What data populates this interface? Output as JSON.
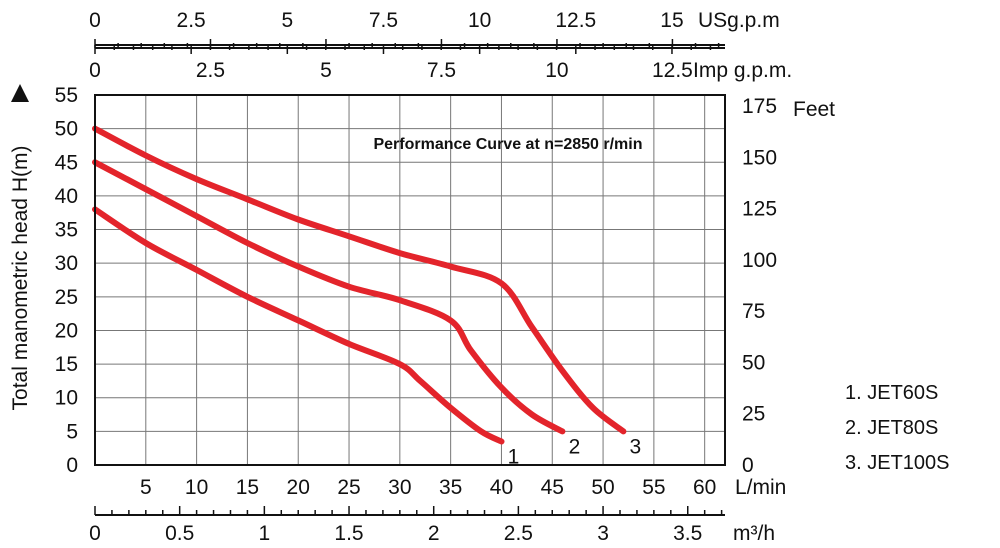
{
  "chart_data": {
    "type": "line",
    "title": "Performance Curve at n=2850 r/min",
    "ylabel": "Total manometric head H(m)",
    "y_axis": {
      "unit_label": "",
      "ylim": [
        0,
        55
      ],
      "ticks": [
        "0",
        "5",
        "10",
        "15",
        "20",
        "25",
        "30",
        "35",
        "40",
        "45",
        "50",
        "55"
      ]
    },
    "y_right_axis": {
      "unit_label": "Feet",
      "ticks": [
        "0",
        "25",
        "50",
        "75",
        "100",
        "125",
        "150",
        "175"
      ]
    },
    "x_axis": {
      "unit_label": "L/min",
      "xlim": [
        0,
        62
      ],
      "ticks": [
        "5",
        "10",
        "15",
        "20",
        "25",
        "30",
        "35",
        "40",
        "45",
        "50",
        "55",
        "60"
      ]
    },
    "x_m3h_axis": {
      "unit_label": "m³/h",
      "ticks": [
        "0",
        "0.5",
        "1",
        "1.5",
        "2",
        "2.5",
        "3",
        "3.5"
      ]
    },
    "x_usgpm_axis": {
      "unit_label": "USg.p.m",
      "ticks": [
        "0",
        "2.5",
        "5",
        "7.5",
        "10",
        "12.5",
        "15"
      ]
    },
    "x_impgpm_axis": {
      "unit_label": "Imp g.p.m.",
      "ticks": [
        "0",
        "2.5",
        "5",
        "7.5",
        "10",
        "12.5"
      ]
    },
    "grid": true,
    "line_color": "#e3242b",
    "series": [
      {
        "label": "1",
        "x": [
          0,
          5,
          10,
          15,
          20,
          25,
          30,
          32,
          35,
          38,
          40
        ],
        "y": [
          38,
          33,
          29,
          25,
          21.5,
          18,
          15,
          12.5,
          8.5,
          5,
          3.5
        ]
      },
      {
        "label": "2",
        "x": [
          0,
          5,
          10,
          15,
          20,
          25,
          30,
          35,
          37,
          40,
          43,
          46
        ],
        "y": [
          45,
          41,
          37,
          33,
          29.5,
          26.5,
          24.5,
          21.5,
          17,
          11.5,
          7.5,
          5
        ]
      },
      {
        "label": "3",
        "x": [
          0,
          5,
          10,
          15,
          20,
          25,
          30,
          35,
          40,
          43,
          46,
          49,
          52
        ],
        "y": [
          50,
          46,
          42.5,
          39.5,
          36.5,
          34,
          31.5,
          29.5,
          27,
          20.5,
          14,
          8.5,
          5
        ]
      }
    ],
    "legend": {
      "position": "right",
      "items": [
        "1. JET60S",
        "2. JET80S",
        "3. JET100S"
      ]
    }
  }
}
